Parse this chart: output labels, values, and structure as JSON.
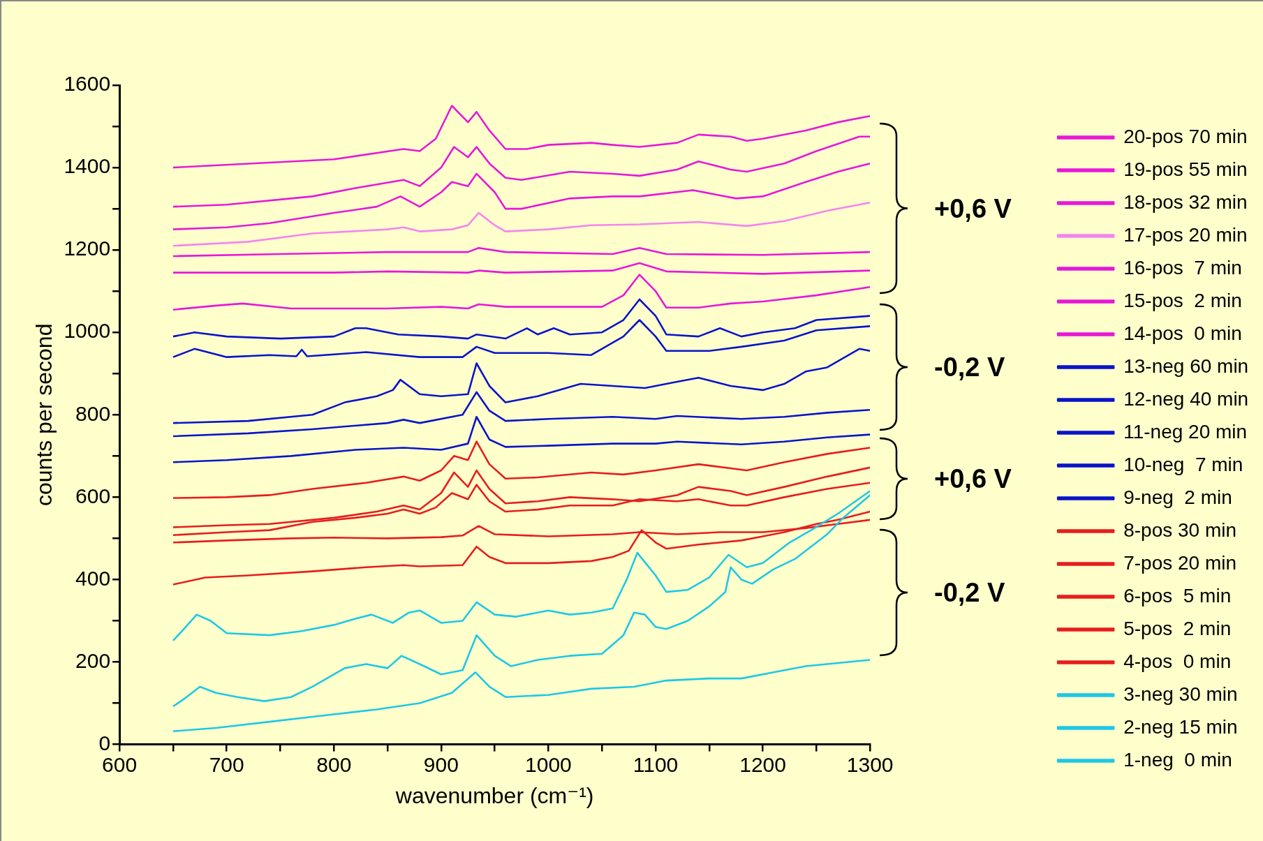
{
  "chart_data": {
    "type": "line",
    "xlabel": "wavenumber (cm⁻¹)",
    "ylabel": "counts per second",
    "xlim": [
      600,
      1300
    ],
    "ylim": [
      0,
      1600
    ],
    "xticks": [
      600,
      {
        "value": 650,
        "label": null
      },
      700,
      {
        "value": 750,
        "label": null
      },
      800,
      {
        "value": 850,
        "label": null
      },
      900,
      {
        "value": 950,
        "label": null
      },
      1000,
      {
        "value": 1050,
        "label": null
      },
      1100,
      {
        "value": 1150,
        "label": null
      },
      1200,
      {
        "value": 1250,
        "label": null
      },
      1300
    ],
    "yticks": [
      0,
      {
        "value": 100,
        "label": null
      },
      200,
      {
        "value": 300,
        "label": null
      },
      400,
      {
        "value": 500,
        "label": null
      },
      600,
      {
        "value": 700,
        "label": null
      },
      800,
      {
        "value": 900,
        "label": null
      },
      1000,
      {
        "value": 1100,
        "label": null
      },
      1200,
      {
        "value": 1300,
        "label": null
      },
      1400,
      {
        "value": 1500,
        "label": null
      },
      1600
    ],
    "grid": false,
    "legend": "right",
    "marker": "none",
    "series": [
      {
        "name": "1-neg  0 min",
        "color": "#1ec8e6",
        "x": [
          650,
          690,
          740,
          790,
          840,
          880,
          910,
          932,
          945,
          960,
          1000,
          1040,
          1080,
          1110,
          1150,
          1180,
          1210,
          1240,
          1280,
          1300
        ],
        "values": [
          32,
          40,
          55,
          70,
          85,
          100,
          125,
          175,
          140,
          115,
          120,
          135,
          140,
          155,
          160,
          160,
          175,
          190,
          200,
          205
        ]
      },
      {
        "name": "2-neg 15 min",
        "color": "#1ec8e6",
        "x": [
          650,
          660,
          675,
          690,
          710,
          735,
          760,
          780,
          810,
          830,
          850,
          863,
          880,
          900,
          920,
          933,
          950,
          965,
          990,
          1020,
          1050,
          1070,
          1080,
          1090,
          1100,
          1110,
          1130,
          1150,
          1165,
          1170,
          1180,
          1190,
          1210,
          1230,
          1260,
          1275,
          1300
        ],
        "values": [
          92,
          110,
          140,
          125,
          115,
          105,
          115,
          140,
          185,
          195,
          185,
          215,
          195,
          170,
          180,
          265,
          215,
          190,
          205,
          215,
          220,
          265,
          320,
          315,
          285,
          280,
          300,
          335,
          370,
          430,
          400,
          390,
          425,
          450,
          510,
          550,
          605
        ]
      },
      {
        "name": "3-neg 30 min",
        "color": "#1ec8e6",
        "x": [
          650,
          660,
          672,
          685,
          700,
          740,
          770,
          800,
          820,
          835,
          855,
          870,
          880,
          900,
          920,
          933,
          950,
          970,
          1000,
          1020,
          1040,
          1060,
          1073,
          1083,
          1100,
          1110,
          1130,
          1150,
          1168,
          1185,
          1200,
          1225,
          1245,
          1270,
          1300
        ],
        "values": [
          252,
          280,
          315,
          300,
          270,
          265,
          275,
          290,
          305,
          315,
          295,
          320,
          325,
          295,
          300,
          345,
          315,
          310,
          325,
          315,
          320,
          330,
          400,
          465,
          410,
          370,
          375,
          405,
          460,
          430,
          440,
          490,
          520,
          560,
          615
        ]
      },
      {
        "name": "4-pos  0 min",
        "color": "#e61e1e",
        "x": [
          650,
          680,
          720,
          780,
          830,
          865,
          880,
          920,
          933,
          945,
          960,
          1000,
          1040,
          1060,
          1075,
          1087,
          1100,
          1110,
          1140,
          1180,
          1200,
          1220,
          1250,
          1270,
          1300
        ],
        "values": [
          388,
          405,
          410,
          420,
          430,
          435,
          432,
          435,
          480,
          455,
          440,
          440,
          445,
          455,
          470,
          520,
          490,
          475,
          485,
          495,
          505,
          515,
          535,
          545,
          565
        ]
      },
      {
        "name": "5-pos  2 min",
        "color": "#e61e1e",
        "x": [
          650,
          700,
          760,
          800,
          850,
          900,
          920,
          935,
          950,
          1000,
          1060,
          1085,
          1120,
          1160,
          1200,
          1240,
          1270,
          1300
        ],
        "values": [
          490,
          495,
          500,
          502,
          500,
          503,
          507,
          530,
          510,
          505,
          510,
          515,
          510,
          515,
          515,
          525,
          535,
          545
        ]
      },
      {
        "name": "6-pos  5 min",
        "color": "#e61e1e",
        "x": [
          650,
          700,
          740,
          780,
          820,
          850,
          865,
          880,
          895,
          910,
          925,
          933,
          945,
          960,
          990,
          1020,
          1060,
          1085,
          1120,
          1140,
          1170,
          1185,
          1220,
          1260,
          1300
        ],
        "values": [
          508,
          515,
          520,
          540,
          550,
          560,
          570,
          560,
          575,
          610,
          595,
          630,
          590,
          565,
          570,
          580,
          580,
          595,
          590,
          595,
          580,
          580,
          600,
          620,
          635
        ]
      },
      {
        "name": "7-pos 20 min",
        "color": "#e61e1e",
        "x": [
          650,
          700,
          740,
          800,
          840,
          865,
          880,
          900,
          912,
          925,
          933,
          945,
          960,
          990,
          1020,
          1060,
          1085,
          1120,
          1140,
          1170,
          1185,
          1220,
          1260,
          1300
        ],
        "values": [
          527,
          532,
          535,
          550,
          565,
          580,
          570,
          610,
          660,
          625,
          665,
          620,
          585,
          590,
          600,
          595,
          590,
          605,
          625,
          615,
          605,
          625,
          650,
          672
        ]
      },
      {
        "name": "8-pos 30 min",
        "color": "#e61e1e",
        "x": [
          650,
          700,
          740,
          780,
          830,
          865,
          880,
          900,
          912,
          925,
          933,
          945,
          960,
          990,
          1040,
          1070,
          1100,
          1140,
          1170,
          1185,
          1220,
          1260,
          1300
        ],
        "values": [
          598,
          600,
          605,
          620,
          635,
          650,
          640,
          665,
          700,
          690,
          735,
          680,
          645,
          648,
          660,
          655,
          665,
          680,
          670,
          665,
          685,
          705,
          720
        ]
      },
      {
        "name": "9-neg  2 min",
        "color": "#0a14c8",
        "x": [
          650,
          700,
          760,
          820,
          865,
          900,
          925,
          933,
          945,
          960,
          1000,
          1060,
          1100,
          1120,
          1180,
          1220,
          1260,
          1300
        ],
        "values": [
          685,
          690,
          700,
          715,
          720,
          715,
          730,
          795,
          740,
          722,
          725,
          730,
          730,
          735,
          728,
          735,
          745,
          752
        ]
      },
      {
        "name": "10-neg  7 min",
        "color": "#0a14c8",
        "x": [
          650,
          720,
          780,
          850,
          865,
          880,
          920,
          933,
          945,
          960,
          1000,
          1060,
          1100,
          1120,
          1180,
          1220,
          1260,
          1300
        ],
        "values": [
          748,
          755,
          765,
          780,
          788,
          780,
          800,
          855,
          810,
          785,
          790,
          795,
          790,
          797,
          790,
          795,
          805,
          812
        ]
      },
      {
        "name": "11-neg 20 min",
        "color": "#0a14c8",
        "x": [
          650,
          720,
          780,
          810,
          840,
          855,
          862,
          880,
          900,
          925,
          933,
          945,
          960,
          990,
          1030,
          1060,
          1090,
          1120,
          1140,
          1170,
          1200,
          1220,
          1240,
          1260,
          1290,
          1300
        ],
        "values": [
          780,
          785,
          800,
          830,
          845,
          860,
          885,
          850,
          845,
          850,
          925,
          870,
          830,
          845,
          875,
          870,
          865,
          880,
          890,
          870,
          860,
          875,
          905,
          915,
          960,
          955
        ]
      },
      {
        "name": "12-neg 40 min",
        "color": "#0a14c8",
        "x": [
          650,
          670,
          700,
          740,
          765,
          770,
          775,
          830,
          880,
          920,
          933,
          950,
          1000,
          1040,
          1070,
          1085,
          1100,
          1110,
          1150,
          1180,
          1220,
          1250,
          1300
        ],
        "values": [
          940,
          960,
          940,
          945,
          942,
          958,
          942,
          952,
          940,
          940,
          965,
          950,
          950,
          945,
          990,
          1030,
          990,
          955,
          955,
          965,
          980,
          1005,
          1015
        ]
      },
      {
        "name": "13-neg 60 min",
        "color": "#0a14c8",
        "x": [
          650,
          670,
          700,
          750,
          800,
          820,
          830,
          860,
          900,
          925,
          933,
          960,
          980,
          990,
          1005,
          1020,
          1050,
          1070,
          1085,
          1100,
          1110,
          1140,
          1160,
          1180,
          1200,
          1230,
          1250,
          1300
        ],
        "values": [
          990,
          1000,
          990,
          985,
          990,
          1010,
          1010,
          995,
          990,
          985,
          995,
          985,
          1010,
          995,
          1010,
          995,
          1000,
          1030,
          1080,
          1040,
          995,
          990,
          1010,
          990,
          1000,
          1010,
          1030,
          1040
        ]
      },
      {
        "name": "14-pos  0 min",
        "color": "#e619d8",
        "x": [
          650,
          690,
          715,
          760,
          850,
          900,
          925,
          935,
          960,
          1050,
          1070,
          1085,
          1100,
          1110,
          1140,
          1170,
          1200,
          1250,
          1300
        ],
        "values": [
          1055,
          1065,
          1070,
          1058,
          1058,
          1062,
          1058,
          1068,
          1062,
          1062,
          1090,
          1140,
          1100,
          1060,
          1060,
          1070,
          1075,
          1090,
          1110
        ]
      },
      {
        "name": "15-pos  2 min",
        "color": "#e619d8",
        "x": [
          650,
          800,
          850,
          925,
          935,
          960,
          1060,
          1085,
          1110,
          1200,
          1300
        ],
        "values": [
          1145,
          1145,
          1148,
          1145,
          1150,
          1145,
          1150,
          1168,
          1148,
          1142,
          1150
        ]
      },
      {
        "name": "16-pos  7 min",
        "color": "#e619d8",
        "x": [
          650,
          750,
          850,
          925,
          935,
          960,
          1060,
          1085,
          1110,
          1200,
          1300
        ],
        "values": [
          1185,
          1190,
          1195,
          1195,
          1205,
          1195,
          1190,
          1205,
          1190,
          1188,
          1195
        ]
      },
      {
        "name": "17-pos 20 min",
        "color": "#f585ee",
        "x": [
          650,
          720,
          780,
          850,
          865,
          880,
          910,
          925,
          935,
          950,
          960,
          1000,
          1040,
          1085,
          1140,
          1185,
          1220,
          1260,
          1300
        ],
        "values": [
          1210,
          1220,
          1240,
          1250,
          1255,
          1245,
          1250,
          1260,
          1290,
          1260,
          1245,
          1250,
          1260,
          1262,
          1268,
          1258,
          1270,
          1295,
          1315
        ]
      },
      {
        "name": "18-pos 32 min",
        "color": "#e619d8",
        "x": [
          650,
          700,
          740,
          800,
          840,
          862,
          880,
          900,
          910,
          925,
          933,
          950,
          960,
          975,
          1020,
          1060,
          1085,
          1135,
          1175,
          1200,
          1240,
          1270,
          1300
        ],
        "values": [
          1250,
          1255,
          1265,
          1290,
          1305,
          1330,
          1305,
          1340,
          1365,
          1355,
          1385,
          1340,
          1300,
          1300,
          1325,
          1330,
          1330,
          1345,
          1325,
          1330,
          1365,
          1390,
          1410
        ]
      },
      {
        "name": "19-pos 55 min",
        "color": "#e619d8",
        "x": [
          650,
          700,
          780,
          820,
          865,
          880,
          900,
          912,
          925,
          933,
          945,
          960,
          975,
          1020,
          1060,
          1085,
          1120,
          1140,
          1170,
          1185,
          1220,
          1250,
          1290,
          1300
        ],
        "values": [
          1305,
          1310,
          1330,
          1350,
          1370,
          1355,
          1400,
          1450,
          1425,
          1450,
          1410,
          1375,
          1370,
          1390,
          1385,
          1380,
          1395,
          1415,
          1395,
          1390,
          1410,
          1440,
          1475,
          1475
        ]
      },
      {
        "name": "20-pos 70 min",
        "color": "#e619d8",
        "x": [
          650,
          800,
          865,
          880,
          895,
          910,
          925,
          933,
          945,
          960,
          980,
          1000,
          1040,
          1060,
          1085,
          1120,
          1140,
          1170,
          1185,
          1200,
          1240,
          1270,
          1300
        ],
        "values": [
          1400,
          1420,
          1445,
          1440,
          1470,
          1550,
          1510,
          1535,
          1490,
          1445,
          1445,
          1455,
          1460,
          1455,
          1450,
          1460,
          1480,
          1475,
          1465,
          1470,
          1490,
          1510,
          1525
        ]
      }
    ],
    "annotations": [
      "+0,6 V",
      "-0,2 V",
      "+0,6 V",
      "-0,2 V"
    ]
  }
}
